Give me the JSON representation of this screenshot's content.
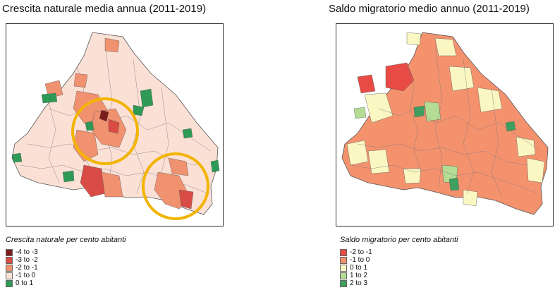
{
  "left_map": {
    "title": "Crescita naturale media annua (2011-2019)",
    "legend_title": "Crescita naturale per cento abitanti",
    "legend": [
      {
        "label": "-4 to -3",
        "color": "#7b1d1d"
      },
      {
        "label": "-3 to -2",
        "color": "#d94b45"
      },
      {
        "label": "-2 to -1",
        "color": "#f0916f"
      },
      {
        "label": "-1 to 0",
        "color": "#fbe0d6"
      },
      {
        "label": "0 to 1",
        "color": "#2e9a55"
      }
    ],
    "highlight_color": "#f2b400"
  },
  "right_map": {
    "title": "Saldo migratorio medio annuo (2011-2019)",
    "legend_title": "Saldo migratorio per cento abitanti",
    "legend": [
      {
        "label": "-2 to -1",
        "color": "#e84b45"
      },
      {
        "label": "-1 to 0",
        "color": "#f5926e"
      },
      {
        "label": "0 to 1",
        "color": "#fbf7c3"
      },
      {
        "label": "1 to 2",
        "color": "#b4dc94"
      },
      {
        "label": "2 to 3",
        "color": "#3ea05e"
      }
    ]
  }
}
